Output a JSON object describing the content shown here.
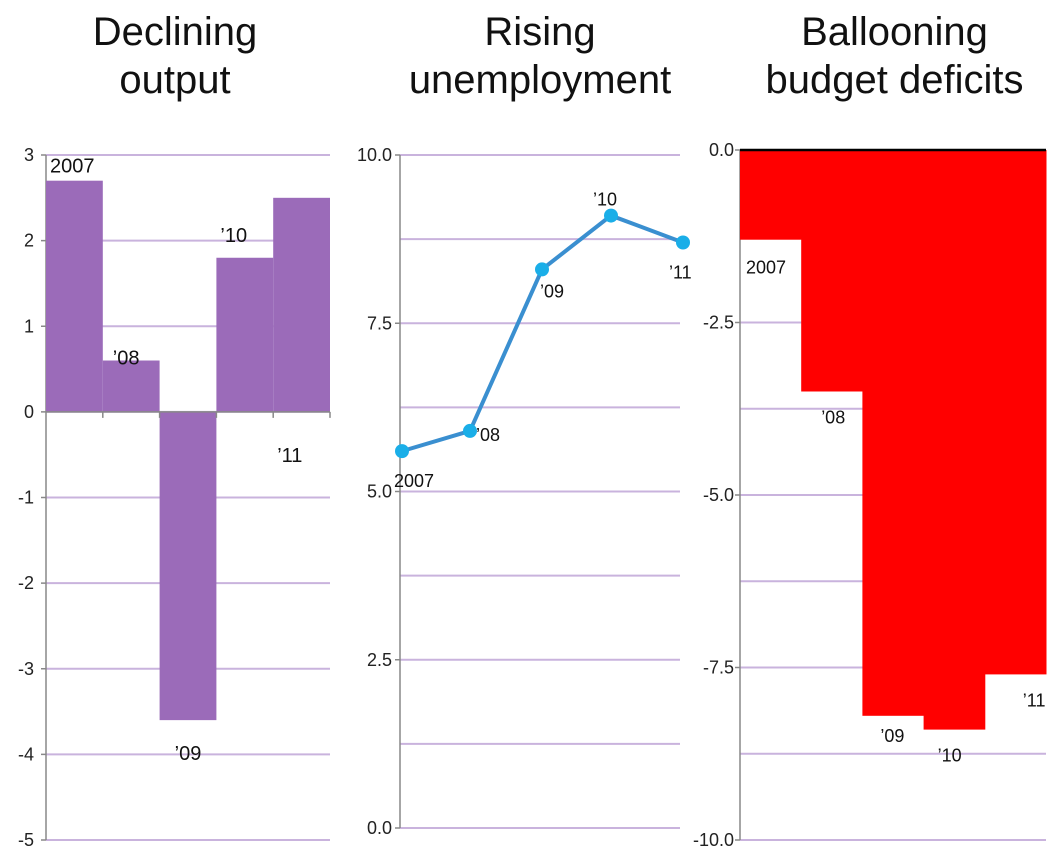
{
  "panels": [
    {
      "title_line1": "Declining",
      "title_line2": "output"
    },
    {
      "title_line1": "Rising",
      "title_line2": "unemployment"
    },
    {
      "title_line1": "Ballooning",
      "title_line2": "budget deficits"
    }
  ],
  "chart_data": [
    {
      "type": "bar",
      "title": "Declining output",
      "categories": [
        "2007",
        "'08",
        "'09",
        "'10",
        "'11"
      ],
      "category_labels": [
        "2007",
        "’08",
        "’09",
        "’10",
        "’11"
      ],
      "values": [
        2.7,
        0.6,
        -3.6,
        1.8,
        2.5
      ],
      "ylim": [
        -5,
        3
      ],
      "yticks": [
        3,
        2,
        1,
        0,
        -1,
        -2,
        -3,
        -4,
        -5
      ],
      "ytick_labels": [
        "3",
        "2",
        "1",
        "0",
        "-1",
        "-2",
        "-3",
        "-4",
        "-5"
      ],
      "color": "#9b6bb9",
      "gridlines": true,
      "grid_color": "#c9b3dd"
    },
    {
      "type": "line",
      "title": "Rising unemployment",
      "categories": [
        "2007",
        "'08",
        "'09",
        "'10",
        "'11"
      ],
      "category_labels": [
        "2007",
        "’08",
        "’09",
        "’10",
        "’11"
      ],
      "values": [
        5.6,
        5.9,
        8.3,
        9.1,
        8.7
      ],
      "ylim": [
        0,
        10
      ],
      "yticks": [
        10,
        7.5,
        5,
        2.5,
        0
      ],
      "ytick_labels": [
        "10.0",
        "7.5",
        "5.0",
        "2.5",
        "0.0"
      ],
      "color": "#1aaee8",
      "line_color": "#3a8fd0",
      "gridlines": true,
      "grid_color": "#c9b3dd"
    },
    {
      "type": "bar",
      "title": "Ballooning budget deficits",
      "categories": [
        "2007",
        "'08",
        "'09",
        "'10",
        "'11"
      ],
      "category_labels": [
        "2007",
        "’08",
        "’09",
        "’10",
        "’11"
      ],
      "values": [
        -1.3,
        -3.5,
        -8.2,
        -8.4,
        -7.6
      ],
      "ylim": [
        -10,
        0
      ],
      "yticks": [
        0,
        -2.5,
        -5,
        -7.5,
        -10
      ],
      "ytick_labels": [
        "0.0",
        "-2.5",
        "-5.0",
        "-7.5",
        "-10.0"
      ],
      "color": "#ff0000",
      "gridlines": true,
      "grid_color": "#c9b3dd"
    }
  ]
}
